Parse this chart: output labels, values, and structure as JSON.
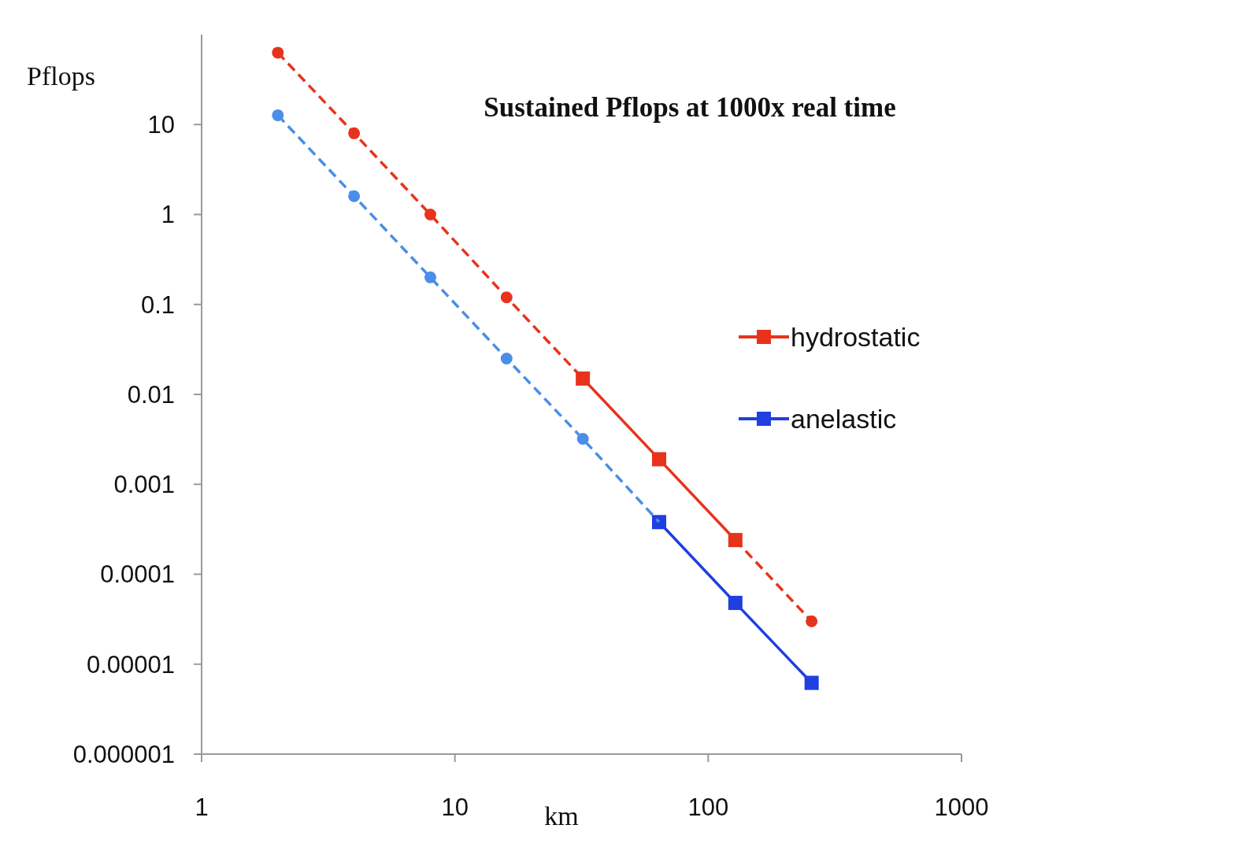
{
  "chart_data": {
    "type": "line",
    "title": "Sustained  Pflops at 1000x real time",
    "xlabel": "km",
    "ylabel": "Pflops",
    "log": "xy",
    "xlim": [
      1,
      1000
    ],
    "xticks": [
      1,
      10,
      100,
      1000
    ],
    "ylim": [
      1e-06,
      100
    ],
    "yticks": [
      {
        "value": 1e-06,
        "label": "0.000001"
      },
      {
        "value": 1e-05,
        "label": "0.00001"
      },
      0.0001,
      0.001,
      0.01,
      0.1,
      1,
      10
    ],
    "grid": false,
    "legend": "right",
    "series": [
      {
        "name": "hydrostatic",
        "color": "#e8331c",
        "x": [
          32,
          64,
          128
        ],
        "values": [
          0.015,
          0.0019,
          0.00024
        ],
        "marker": "square",
        "line_style": "solid"
      },
      {
        "color": "#e8331c",
        "x": [
          2,
          4,
          8,
          16,
          32,
          64,
          128,
          256
        ],
        "values": [
          63,
          8,
          1,
          0.12,
          0.015,
          null,
          0.00024,
          3e-05
        ],
        "marker": "circle",
        "line_style": "dashed"
      },
      {
        "name": "anelastic",
        "color": "#1f3fe0",
        "x": [
          64,
          128,
          256
        ],
        "values": [
          0.00038,
          4.8e-05,
          6.2e-06
        ],
        "marker": "square",
        "line_style": "solid"
      },
      {
        "color": "#4a8ee8",
        "x": [
          2,
          4,
          8,
          16,
          32,
          64
        ],
        "values": [
          12.7,
          1.6,
          0.2,
          0.025,
          0.0032,
          0.00038
        ],
        "marker": "circle",
        "line_style": "dashed"
      }
    ]
  }
}
